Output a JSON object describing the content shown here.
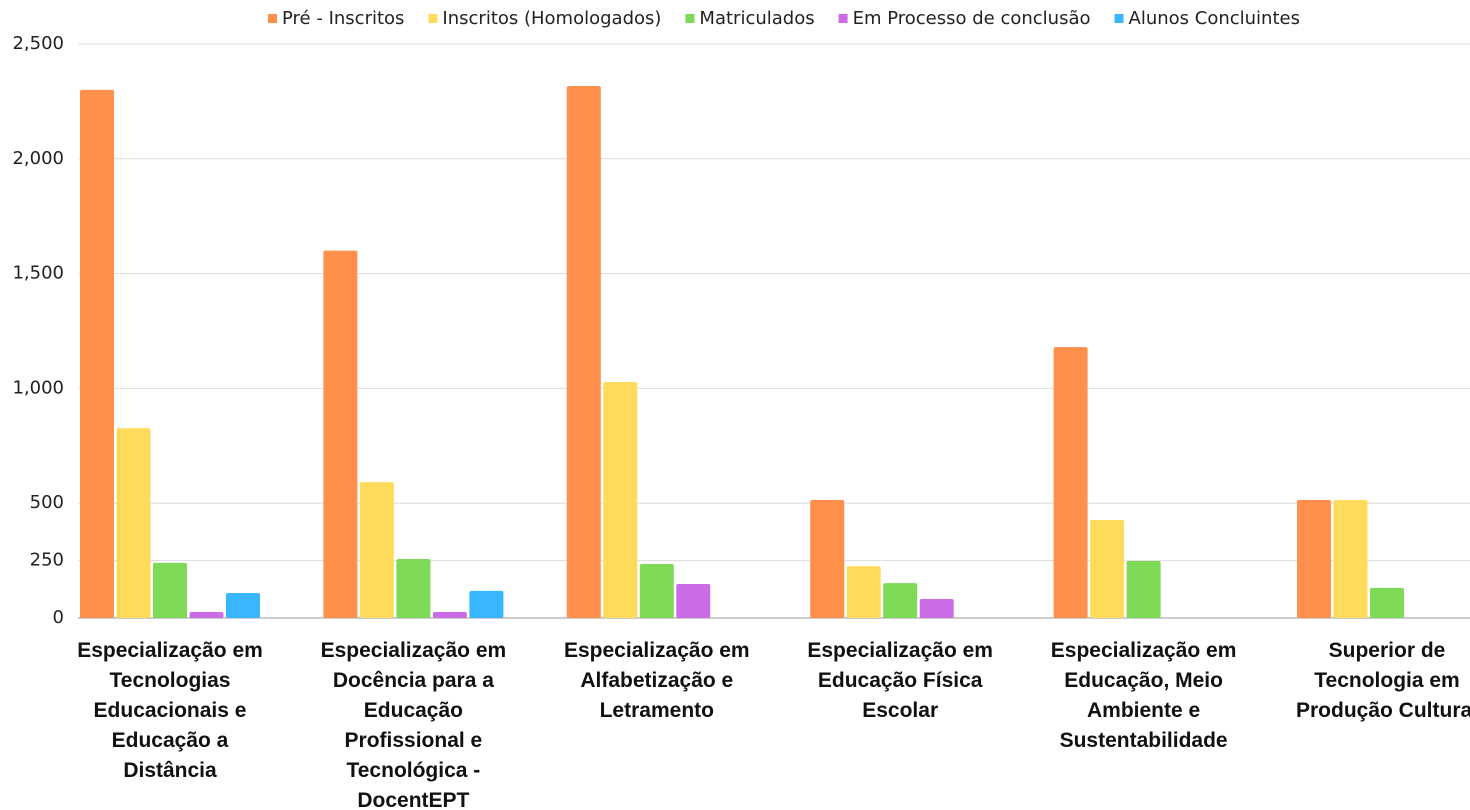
{
  "chart_data": {
    "type": "bar",
    "categories": [
      "Especialização em Tecnologias Educacionais e Educação a Distância",
      "Especialização em Docência para a Educação Profissional e Tecnológica - DocentEPT",
      "Especialização em Alfabetização e Letramento",
      "Especialização em Educação Física Escolar",
      "Especialização em Educação, Meio Ambiente e Sustentabilidade",
      "Superior de Tecnologia em Produção Cultural"
    ],
    "series": [
      {
        "name": "Pré - Inscritos",
        "color": "#ff8f4a",
        "values": [
          2300,
          1600,
          2317,
          514,
          1180,
          514
        ]
      },
      {
        "name": "Inscritos (Homologados)",
        "color": "#ffdb5c",
        "values": [
          827,
          592,
          1028,
          226,
          427,
          514
        ]
      },
      {
        "name": "Matriculados",
        "color": "#7ed957",
        "values": [
          240,
          257,
          235,
          152,
          248,
          131
        ]
      },
      {
        "name": "Em Processo de conclusão",
        "color": "#cb6ce6",
        "values": [
          26,
          26,
          148,
          83,
          null,
          null
        ]
      },
      {
        "name": "Alunos Concluintes",
        "color": "#38b6ff",
        "values": [
          109,
          118,
          null,
          null,
          null,
          null
        ]
      }
    ],
    "ylim": [
      0,
      2500
    ],
    "yticks": [
      0,
      250,
      500,
      {
        "value": 1000,
        "label": "1,000"
      },
      {
        "value": 1500,
        "label": "1,500"
      },
      {
        "value": 2000,
        "label": "2,000"
      },
      {
        "value": 2500,
        "label": "2,500"
      }
    ],
    "grid": true,
    "legend": "top"
  }
}
